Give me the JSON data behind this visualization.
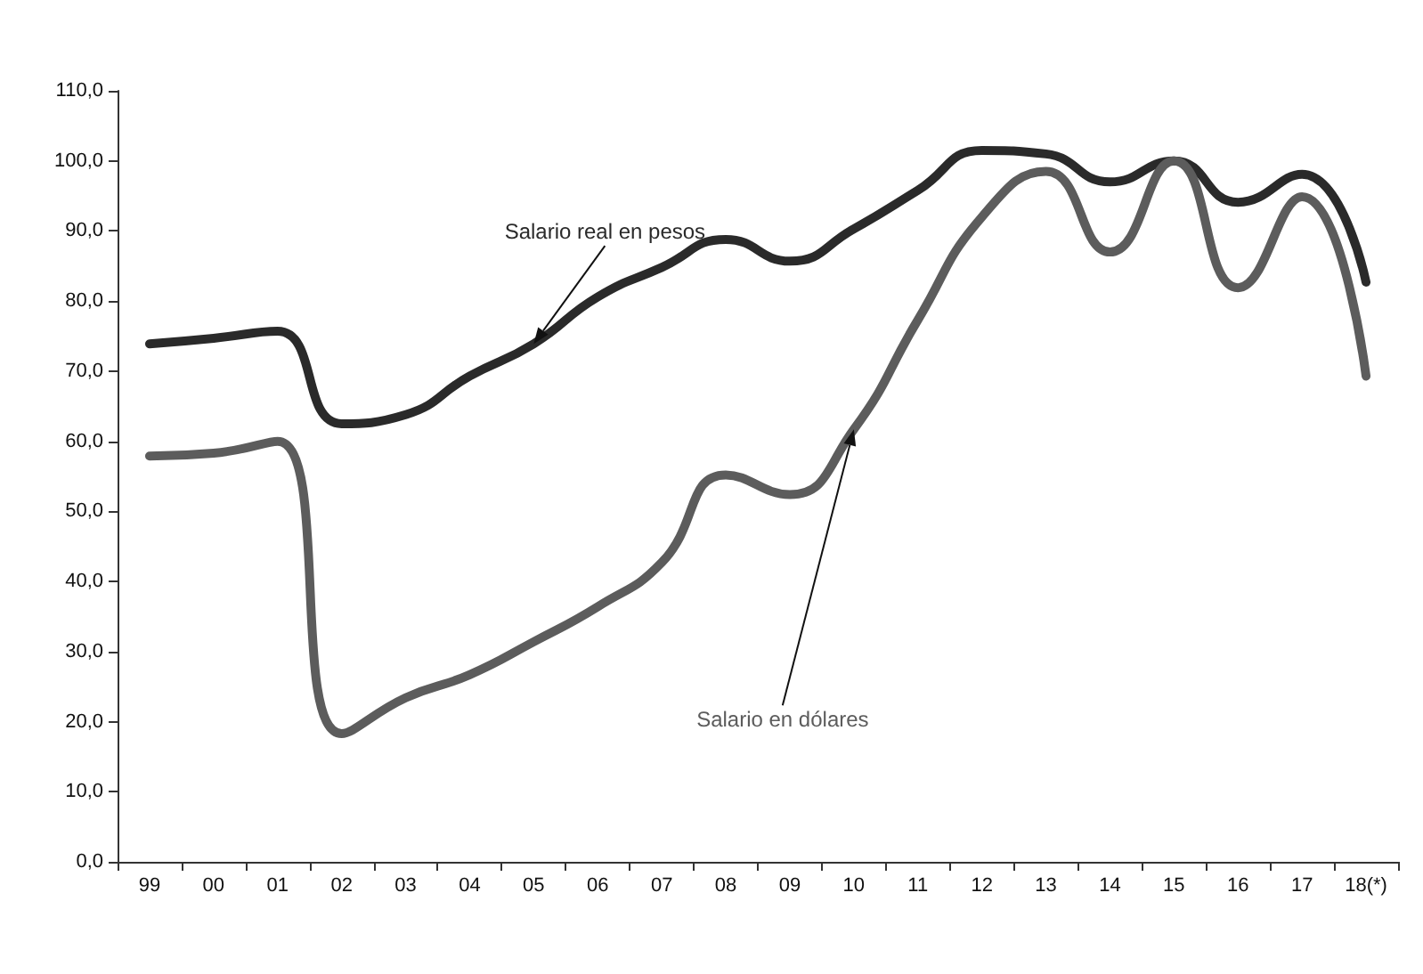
{
  "chart_data": {
    "type": "line",
    "categories": [
      "99",
      "00",
      "01",
      "02",
      "03",
      "04",
      "05",
      "06",
      "07",
      "08",
      "09",
      "10",
      "11",
      "12",
      "13",
      "14",
      "15",
      "16",
      "17",
      "18(*)"
    ],
    "series": [
      {
        "name": "Salario real en pesos",
        "color": "#2a2a2a",
        "values": [
          73.9,
          74.7,
          75.7,
          62.5,
          63.8,
          69.3,
          73.9,
          80.6,
          84.8,
          88.8,
          85.7,
          90.3,
          95.8,
          101.5,
          101,
          97,
          100,
          94.1,
          98.1,
          82.7
        ]
      },
      {
        "name": "Salario en dólares",
        "color": "#5c5c5c",
        "values": [
          57.9,
          58.3,
          60,
          18.3,
          23.4,
          26.7,
          31.4,
          36.4,
          42.7,
          55.2,
          52.4,
          61.7,
          77.3,
          92,
          98.5,
          87,
          100,
          81.9,
          94.9,
          69.3
        ]
      }
    ],
    "ylim": [
      0,
      110
    ],
    "yticks": [
      {
        "value": 0,
        "label": "0,0"
      },
      {
        "value": 10,
        "label": "10,0"
      },
      {
        "value": 20,
        "label": "20,0"
      },
      {
        "value": 30,
        "label": "30,0"
      },
      {
        "value": 40,
        "label": "40,0"
      },
      {
        "value": 50,
        "label": "50,0"
      },
      {
        "value": 60,
        "label": "60,0"
      },
      {
        "value": 70,
        "label": "70,0"
      },
      {
        "value": 80,
        "label": "80,0"
      },
      {
        "value": 90,
        "label": "90,0"
      },
      {
        "value": 100,
        "label": "100,0"
      },
      {
        "value": 110,
        "label": "110,0"
      }
    ],
    "grid": false,
    "legend": false,
    "marker": "none",
    "line_style": "solid"
  }
}
